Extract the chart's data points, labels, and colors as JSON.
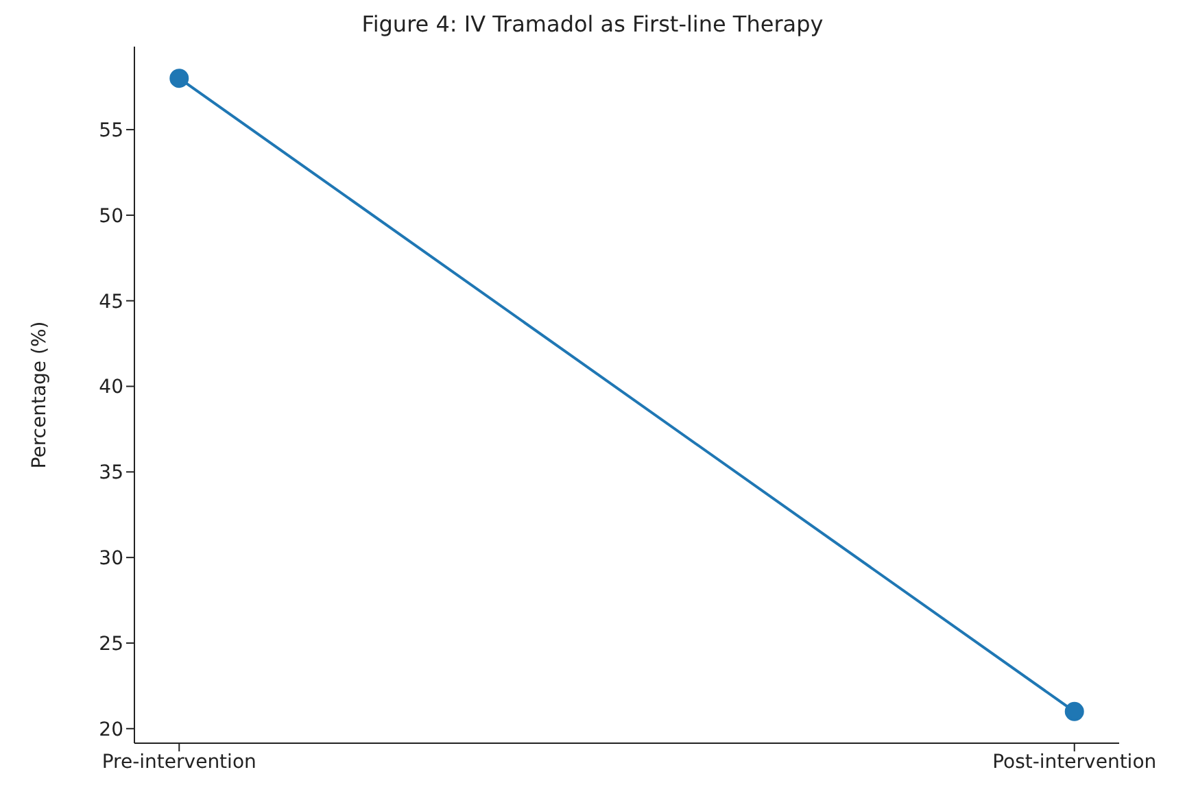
{
  "chart_data": {
    "type": "line",
    "title": "Figure 4: IV Tramadol as First-line Therapy",
    "ylabel": "Percentage (%)",
    "categories": [
      "Pre-intervention",
      "Post-intervention"
    ],
    "series": [
      {
        "color": "#1f77b4",
        "values": [
          58,
          21
        ]
      }
    ],
    "ylim": [
      19.15,
      59.85
    ],
    "yticks": [
      20,
      25,
      30,
      35,
      40,
      45,
      50,
      55
    ],
    "marker": "circle",
    "line_style": "solid",
    "grid": false,
    "legend": false
  }
}
